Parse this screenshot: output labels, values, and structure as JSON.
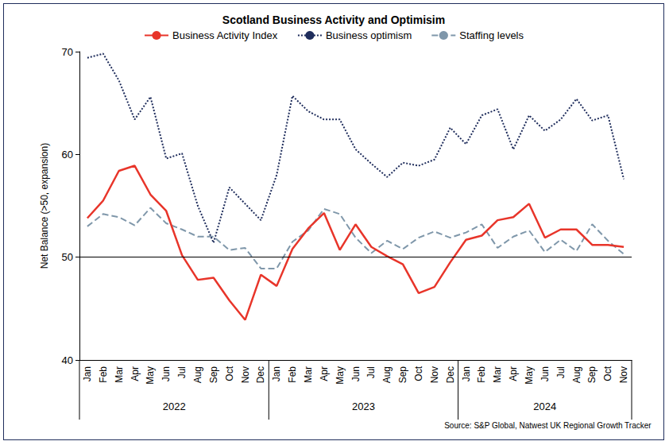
{
  "chart_data": {
    "type": "line",
    "title": "Scotland Business Activity and Optimisim",
    "y_label": "Net Balance (>50, expansion)",
    "source": "Source: S&P Global, Natwest UK Regional Growth Tracker",
    "categories": [
      "Jan",
      "Feb",
      "Mar",
      "Apr",
      "May",
      "Jun",
      "Jul",
      "Aug",
      "Sep",
      "Oct",
      "Nov",
      "Dec",
      "Jan",
      "Feb",
      "Mar",
      "Apr",
      "May",
      "Jun",
      "Jul",
      "Aug",
      "Sep",
      "Oct",
      "Nov",
      "Dec",
      "Jan",
      "Feb",
      "Mar",
      "Apr",
      "May",
      "Jun",
      "Jul",
      "Aug",
      "Sep",
      "Oct",
      "Nov"
    ],
    "x_groups": [
      "2022",
      "2023",
      "2024"
    ],
    "series": [
      {
        "name": "Business Activity Index",
        "color": "#e8352a",
        "line_style": "solid",
        "values": [
          53.8,
          55.5,
          58.4,
          58.9,
          56.1,
          54.5,
          50.2,
          47.8,
          48.0,
          45.8,
          43.9,
          48.3,
          47.2,
          50.8,
          52.8,
          54.3,
          50.7,
          53.2,
          51.0,
          50.1,
          49.3,
          46.5,
          47.1,
          49.5,
          51.7,
          52.1,
          53.6,
          53.9,
          55.2,
          51.9,
          52.7,
          52.7,
          51.2,
          51.2,
          51.0
        ]
      },
      {
        "name": "Business optimism",
        "color": "#1f2d5c",
        "line_style": "dotted",
        "values": [
          69.4,
          69.8,
          67.2,
          63.4,
          65.6,
          59.6,
          60.1,
          55.0,
          51.4,
          56.8,
          55.2,
          53.6,
          58.0,
          65.7,
          64.2,
          63.4,
          63.4,
          60.5,
          59.1,
          57.8,
          59.2,
          58.9,
          59.5,
          62.6,
          61.0,
          63.8,
          64.4,
          60.5,
          63.8,
          62.3,
          63.4,
          65.4,
          63.3,
          63.8,
          57.6
        ]
      },
      {
        "name": "Staffing levels",
        "color": "#7f97aa",
        "line_style": "dashed",
        "values": [
          53.0,
          54.2,
          53.9,
          53.1,
          54.8,
          53.3,
          52.7,
          52.0,
          52.0,
          50.7,
          50.9,
          48.9,
          48.9,
          51.5,
          52.6,
          54.7,
          54.2,
          51.9,
          50.4,
          51.6,
          50.8,
          51.9,
          52.5,
          51.9,
          52.4,
          53.2,
          50.9,
          52.0,
          52.6,
          50.5,
          51.7,
          50.6,
          53.2,
          51.6,
          50.3
        ]
      }
    ],
    "ylim": [
      40,
      70
    ],
    "yticks": [
      40,
      50,
      60,
      70
    ],
    "hline": 50,
    "grid": false,
    "legend": "top"
  }
}
